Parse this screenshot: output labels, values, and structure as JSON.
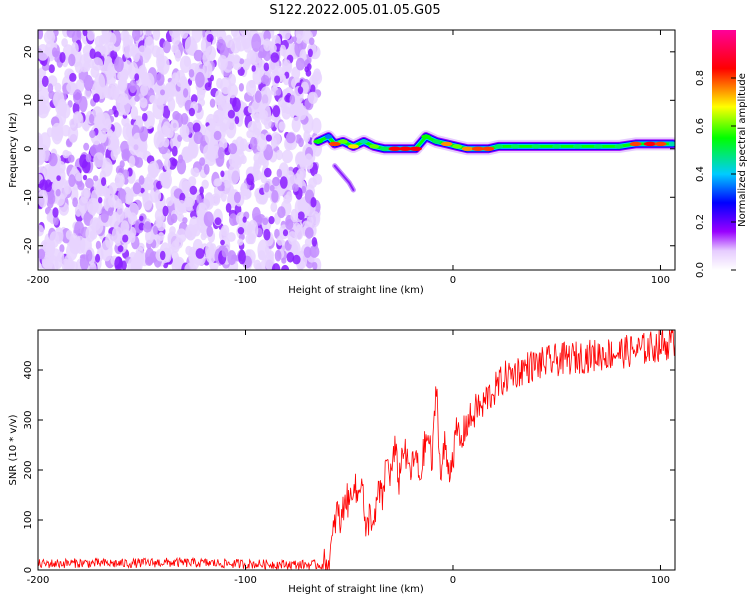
{
  "figure_title": "S122.2022.005.01.05.G05",
  "chart_data": [
    {
      "type": "heatmap",
      "title": "",
      "xlabel": "Height of straight line (km)",
      "ylabel": "Frequency (Hz)",
      "xlim": [
        -200,
        107
      ],
      "ylim": [
        -25,
        24.5
      ],
      "xticks": [
        -200,
        -100,
        0,
        100
      ],
      "yticks": [
        -20,
        -10,
        0,
        10,
        20
      ],
      "colorbar": {
        "label": "Normalized spectral amplitude",
        "range": [
          0,
          1
        ],
        "ticks": [
          0.0,
          0.2,
          0.4,
          0.6,
          0.8
        ],
        "tick_labels": [
          "0.0",
          "0.2",
          "0.4",
          "0.6",
          "0.8"
        ],
        "colormap": [
          "#ffffff",
          "#e6ccff",
          "#9900ff",
          "#0000ff",
          "#00ccff",
          "#00ff00",
          "#ffff00",
          "#ff0000",
          "#ff0099"
        ]
      },
      "noise_region_x": [
        -200,
        -68
      ],
      "ridge": [
        {
          "x": -65,
          "f": 1.5,
          "a": 0.55
        },
        {
          "x": -60,
          "f": 2.5,
          "a": 0.35
        },
        {
          "x": -57,
          "f": 1.0,
          "a": 0.8
        },
        {
          "x": -53,
          "f": 1.5,
          "a": 0.6
        },
        {
          "x": -48,
          "f": 0.5,
          "a": 0.7
        },
        {
          "x": -43,
          "f": 1.5,
          "a": 0.45
        },
        {
          "x": -38,
          "f": 0.5,
          "a": 0.6
        },
        {
          "x": -33,
          "f": 0.0,
          "a": 0.5
        },
        {
          "x": -28,
          "f": 0.0,
          "a": 0.85
        },
        {
          "x": -23,
          "f": 0.0,
          "a": 0.85
        },
        {
          "x": -18,
          "f": 0.0,
          "a": 0.85
        },
        {
          "x": -13,
          "f": 2.5,
          "a": 0.55
        },
        {
          "x": -8,
          "f": 1.5,
          "a": 0.5
        },
        {
          "x": -3,
          "f": 1.0,
          "a": 0.75
        },
        {
          "x": 2,
          "f": 0.5,
          "a": 0.6
        },
        {
          "x": 7,
          "f": 0.0,
          "a": 0.75
        },
        {
          "x": 12,
          "f": 0.0,
          "a": 0.8
        },
        {
          "x": 17,
          "f": 0.0,
          "a": 0.8
        },
        {
          "x": 22,
          "f": 0.5,
          "a": 0.5
        },
        {
          "x": 30,
          "f": 0.5,
          "a": 0.5
        },
        {
          "x": 40,
          "f": 0.5,
          "a": 0.5
        },
        {
          "x": 50,
          "f": 0.5,
          "a": 0.5
        },
        {
          "x": 60,
          "f": 0.5,
          "a": 0.5
        },
        {
          "x": 70,
          "f": 0.5,
          "a": 0.5
        },
        {
          "x": 80,
          "f": 0.5,
          "a": 0.5
        },
        {
          "x": 88,
          "f": 1.0,
          "a": 0.8
        },
        {
          "x": 95,
          "f": 1.0,
          "a": 0.85
        },
        {
          "x": 100,
          "f": 1.0,
          "a": 0.8
        },
        {
          "x": 106,
          "f": 1.0,
          "a": 0.45
        }
      ],
      "secondary_trace": [
        {
          "x": -57,
          "f": -3.5
        },
        {
          "x": -53,
          "f": -5.5
        },
        {
          "x": -50,
          "f": -7.0
        },
        {
          "x": -48,
          "f": -8.5
        }
      ]
    },
    {
      "type": "line",
      "title": "",
      "xlabel": "Height of straight line (km)",
      "ylabel": "SNR (10 * v/v)",
      "xlim": [
        -200,
        107
      ],
      "ylim": [
        0,
        480
      ],
      "xticks": [
        -200,
        -100,
        0,
        100
      ],
      "yticks": [
        0,
        100,
        200,
        300,
        400
      ],
      "line_color": "#ff0000",
      "series": [
        {
          "name": "SNR",
          "x": [
            -200,
            -180,
            -160,
            -140,
            -120,
            -100,
            -80,
            -60,
            -58,
            -56,
            -54,
            -52,
            -50,
            -48,
            -46,
            -44,
            -42,
            -40,
            -38,
            -36,
            -34,
            -32,
            -30,
            -28,
            -26,
            -24,
            -22,
            -20,
            -18,
            -16,
            -14,
            -12,
            -10,
            -8,
            -6,
            -4,
            -2,
            0,
            2,
            4,
            6,
            8,
            10,
            12,
            14,
            16,
            18,
            20,
            25,
            30,
            35,
            40,
            50,
            60,
            70,
            80,
            90,
            100,
            107
          ],
          "y": [
            12,
            14,
            13,
            15,
            14,
            12,
            11,
            10,
            60,
            120,
            90,
            150,
            130,
            180,
            140,
            200,
            60,
            120,
            80,
            160,
            140,
            220,
            190,
            240,
            180,
            250,
            210,
            200,
            230,
            180,
            240,
            270,
            210,
            380,
            180,
            250,
            200,
            230,
            280,
            250,
            290,
            300,
            310,
            330,
            320,
            345,
            350,
            360,
            385,
            395,
            405,
            410,
            420,
            425,
            430,
            435,
            440,
            450,
            455
          ]
        }
      ],
      "noise_amplitude": 12
    }
  ]
}
